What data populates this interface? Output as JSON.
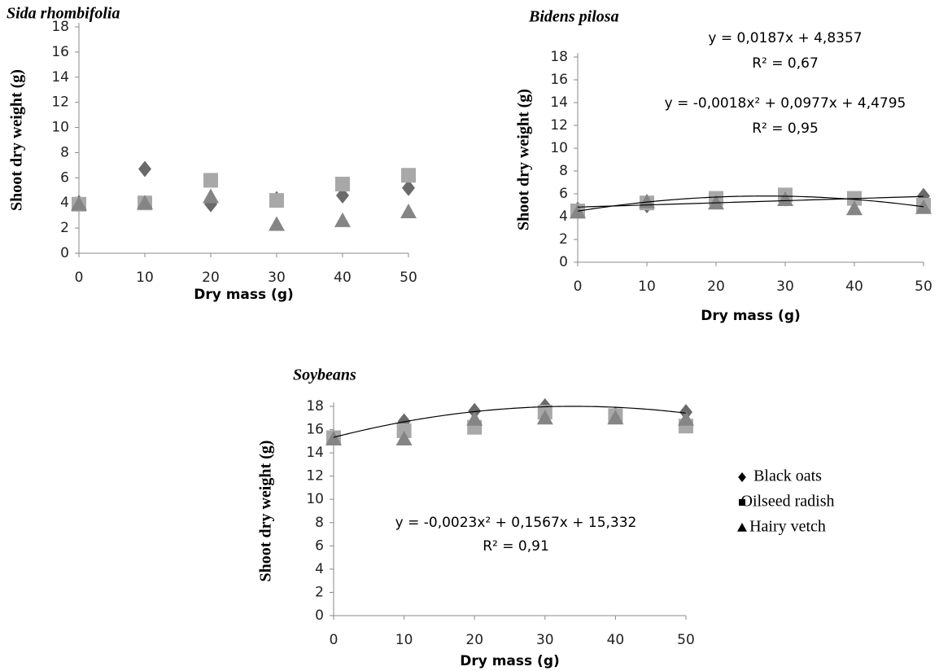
{
  "chart_data": [
    {
      "type": "scatter",
      "title": "Sida rhombifolia",
      "x_label": "Dry mass (g)",
      "y_label": "Shoot dry weight (g)",
      "x": [
        0,
        10,
        20,
        30,
        40,
        50
      ],
      "series": [
        {
          "marker": "diamond",
          "color": "#6a6a6a",
          "values": [
            4.0,
            6.7,
            3.9,
            4.3,
            4.6,
            5.2
          ]
        },
        {
          "marker": "square",
          "color": "#a8a8a8",
          "values": [
            3.9,
            4.0,
            5.8,
            4.2,
            5.5,
            6.2
          ]
        },
        {
          "marker": "triangle",
          "color": "#858585",
          "values": [
            3.9,
            4.0,
            4.5,
            2.3,
            2.6,
            3.3
          ]
        }
      ],
      "xlim": [
        0,
        50
      ],
      "xticks": [
        0,
        10,
        20,
        30,
        40,
        50
      ],
      "ylim": [
        0,
        18
      ],
      "yticks": [
        0,
        2,
        4,
        6,
        8,
        10,
        12,
        14,
        16,
        18
      ]
    },
    {
      "type": "scatter",
      "title": "Bidens pilosa",
      "x_label": "Dry mass (g)",
      "y_label": "Shoot dry weight (g)",
      "x": [
        0,
        10,
        20,
        30,
        40,
        50
      ],
      "series": [
        {
          "marker": "diamond",
          "color": "#6a6a6a",
          "values": [
            4.6,
            5.0,
            5.5,
            5.6,
            5.5,
            5.8
          ]
        },
        {
          "marker": "square",
          "color": "#a8a8a8",
          "values": [
            4.5,
            5.2,
            5.6,
            5.9,
            5.6,
            5.0
          ]
        },
        {
          "marker": "triangle",
          "color": "#858585",
          "values": [
            4.4,
            5.3,
            5.2,
            5.5,
            4.7,
            4.8
          ]
        }
      ],
      "trendlines": [
        {
          "equation": "y = 0,0187x + 4,8357",
          "r2": "R² = 0,67",
          "coefficients": [
            4.8357,
            0.0187
          ]
        },
        {
          "equation": "y = -0,0018x² + 0,0977x + 4,4795",
          "r2": "R² = 0,95",
          "coefficients": [
            4.4795,
            0.0977,
            -0.0018
          ]
        }
      ],
      "xlim": [
        0,
        50
      ],
      "xticks": [
        0,
        10,
        20,
        30,
        40,
        50
      ],
      "ylim": [
        0,
        18
      ],
      "yticks": [
        0,
        2,
        4,
        6,
        8,
        10,
        12,
        14,
        16,
        18
      ]
    },
    {
      "type": "scatter",
      "title": "Soybeans",
      "x_label": "Dry mass (g)",
      "y_label": "Shoot dry weight (g)",
      "x": [
        0,
        10,
        20,
        30,
        40,
        50
      ],
      "series": [
        {
          "name": "Black oats",
          "marker": "diamond",
          "color": "#6a6a6a",
          "values": [
            15.3,
            16.7,
            17.6,
            18.0,
            17.3,
            17.5
          ]
        },
        {
          "name": "Oilseed radish",
          "marker": "square",
          "color": "#a8a8a8",
          "values": [
            15.3,
            15.9,
            16.2,
            17.5,
            17.2,
            16.3
          ]
        },
        {
          "name": "Hairy vetch",
          "marker": "triangle",
          "color": "#858585",
          "values": [
            15.2,
            15.2,
            16.9,
            17.0,
            17.0,
            16.9
          ]
        }
      ],
      "trendlines": [
        {
          "equation": "y = -0,0023x² + 0,1567x + 15,332",
          "r2": "R² = 0,91",
          "coefficients": [
            15.332,
            0.1567,
            -0.0023
          ]
        }
      ],
      "legend_color": "#000000",
      "xlim": [
        0,
        50
      ],
      "xticks": [
        0,
        10,
        20,
        30,
        40,
        50
      ],
      "ylim": [
        0,
        18
      ],
      "yticks": [
        0,
        2,
        4,
        6,
        8,
        10,
        12,
        14,
        16,
        18
      ]
    }
  ]
}
